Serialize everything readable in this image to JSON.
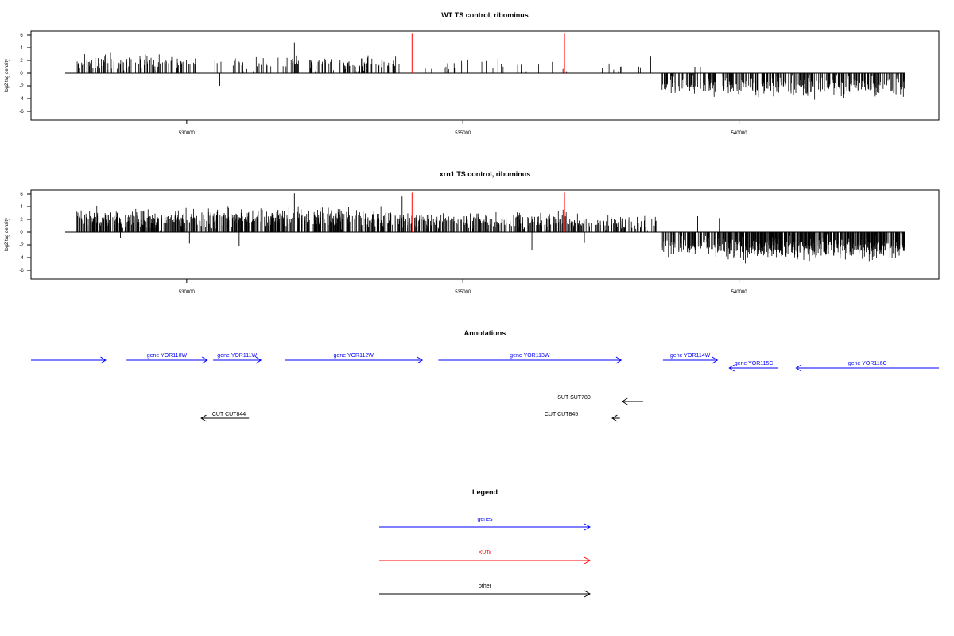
{
  "colors": {
    "gene": "#0000ff",
    "xut": "#ff0000",
    "other": "#000000",
    "bars": "#000000",
    "frame": "#000000"
  },
  "chart_data": [
    {
      "type": "bar",
      "title": "WT TS control, ribominus",
      "ylabel": "log2 tag density",
      "xlim": [
        527800,
        543000
      ],
      "ylim": [
        -7,
        7
      ],
      "xticks": [
        "530000",
        "535000",
        "540000"
      ],
      "yticks": [
        "6",
        "4",
        "2",
        "0",
        "-2",
        "-4",
        "-6"
      ],
      "xut_markers_x": [
        534080,
        536840
      ],
      "seed": 7,
      "segments": [
        {
          "from": 528000,
          "to": 530200,
          "n": 110,
          "mean": 1.6,
          "spread": 1.0,
          "max": 4.2,
          "sign": 1
        },
        {
          "from": 530400,
          "to": 531900,
          "n": 30,
          "mean": 1.5,
          "spread": 0.7,
          "max": 4.8,
          "sign": 1
        },
        {
          "from": 531900,
          "to": 533800,
          "n": 90,
          "mean": 1.6,
          "spread": 0.8,
          "max": 3.2,
          "sign": 1
        },
        {
          "from": 533800,
          "to": 536900,
          "n": 30,
          "mean": 1.2,
          "spread": 1.0,
          "max": 3.8,
          "sign": 1
        },
        {
          "from": 537500,
          "to": 538400,
          "n": 8,
          "mean": 1.0,
          "spread": 0.6,
          "max": 2.5,
          "sign": 1
        },
        {
          "from": 538600,
          "to": 539600,
          "n": 70,
          "mean": 2.0,
          "spread": 1.0,
          "max": 4.5,
          "sign": -1
        },
        {
          "from": 539700,
          "to": 543000,
          "n": 280,
          "mean": 2.1,
          "spread": 1.2,
          "max": 6.0,
          "sign": -1
        }
      ],
      "extra_bars": [
        {
          "x": 530600,
          "y": -2.0
        },
        {
          "x": 538400,
          "y": 2.6
        },
        {
          "x": 539150,
          "y": 1.0
        },
        {
          "x": 539200,
          "y": 1.0
        },
        {
          "x": 539300,
          "y": 1.0
        },
        {
          "x": 531950,
          "y": 4.8
        }
      ]
    },
    {
      "type": "bar",
      "title": "xrn1 TS control, ribominus",
      "ylabel": "log2 tag density",
      "xlim": [
        527800,
        543000
      ],
      "ylim": [
        -7,
        7
      ],
      "xticks": [
        "530000",
        "535000",
        "540000"
      ],
      "yticks": [
        "6",
        "4",
        "2",
        "0",
        "-2",
        "-4",
        "-6"
      ],
      "xut_markers_x": [
        534080,
        536840
      ],
      "seed": 19,
      "segments": [
        {
          "from": 528000,
          "to": 530200,
          "n": 260,
          "mean": 2.0,
          "spread": 1.2,
          "max": 5.0,
          "sign": 1
        },
        {
          "from": 530200,
          "to": 533900,
          "n": 380,
          "mean": 2.1,
          "spread": 1.1,
          "max": 5.2,
          "sign": 1
        },
        {
          "from": 533900,
          "to": 536900,
          "n": 240,
          "mean": 1.8,
          "spread": 1.0,
          "max": 4.5,
          "sign": 1
        },
        {
          "from": 536900,
          "to": 538500,
          "n": 90,
          "mean": 1.5,
          "spread": 0.9,
          "max": 3.5,
          "sign": 1
        },
        {
          "from": 538600,
          "to": 539700,
          "n": 110,
          "mean": 2.2,
          "spread": 1.1,
          "max": 4.5,
          "sign": -1
        },
        {
          "from": 539700,
          "to": 543000,
          "n": 520,
          "mean": 2.4,
          "spread": 1.3,
          "max": 6.5,
          "sign": -1
        }
      ],
      "extra_bars": [
        {
          "x": 531950,
          "y": 6.1
        },
        {
          "x": 533900,
          "y": 5.6
        },
        {
          "x": 536250,
          "y": -2.8
        },
        {
          "x": 530950,
          "y": -2.2
        },
        {
          "x": 530050,
          "y": -1.8
        },
        {
          "x": 528800,
          "y": -1.0
        },
        {
          "x": 539250,
          "y": 2.5
        },
        {
          "x": 539650,
          "y": 2.2
        },
        {
          "x": 537200,
          "y": -1.7
        }
      ]
    }
  ],
  "annotations": {
    "title": "Annotations",
    "genes": [
      {
        "label": "",
        "from": 527800,
        "to": 529050,
        "strand": "+"
      },
      {
        "label": "gene YOR110W",
        "from": 529400,
        "to": 530750,
        "strand": "+"
      },
      {
        "label": "gene YOR111W",
        "from": 530850,
        "to": 531650,
        "strand": "+"
      },
      {
        "label": "gene YOR112W",
        "from": 532050,
        "to": 534350,
        "strand": "+"
      },
      {
        "label": "gene YOR113W",
        "from": 534620,
        "to": 537680,
        "strand": "+"
      },
      {
        "label": "gene YOR114W",
        "from": 538380,
        "to": 539290,
        "strand": "+"
      },
      {
        "label": "gene YOR115C",
        "from": 539490,
        "to": 540310,
        "strand": "-"
      },
      {
        "label": "gene YOR116C",
        "from": 540610,
        "to": 543000,
        "strand": "-"
      }
    ],
    "others": [
      {
        "label": "SUT SUT780",
        "from": 537700,
        "to": 538050,
        "strand": "-"
      },
      {
        "label": "CUT CUT844",
        "from": 530650,
        "to": 531450,
        "strand": "-"
      },
      {
        "label": "CUT CUT845",
        "from": 537530,
        "to": 537660,
        "strand": "-"
      }
    ]
  },
  "legend": {
    "title": "Legend",
    "items": [
      {
        "label": "genes",
        "color": "#0000ff"
      },
      {
        "label": "XUTs",
        "color": "#ff0000"
      },
      {
        "label": "other",
        "color": "#000000"
      }
    ]
  }
}
